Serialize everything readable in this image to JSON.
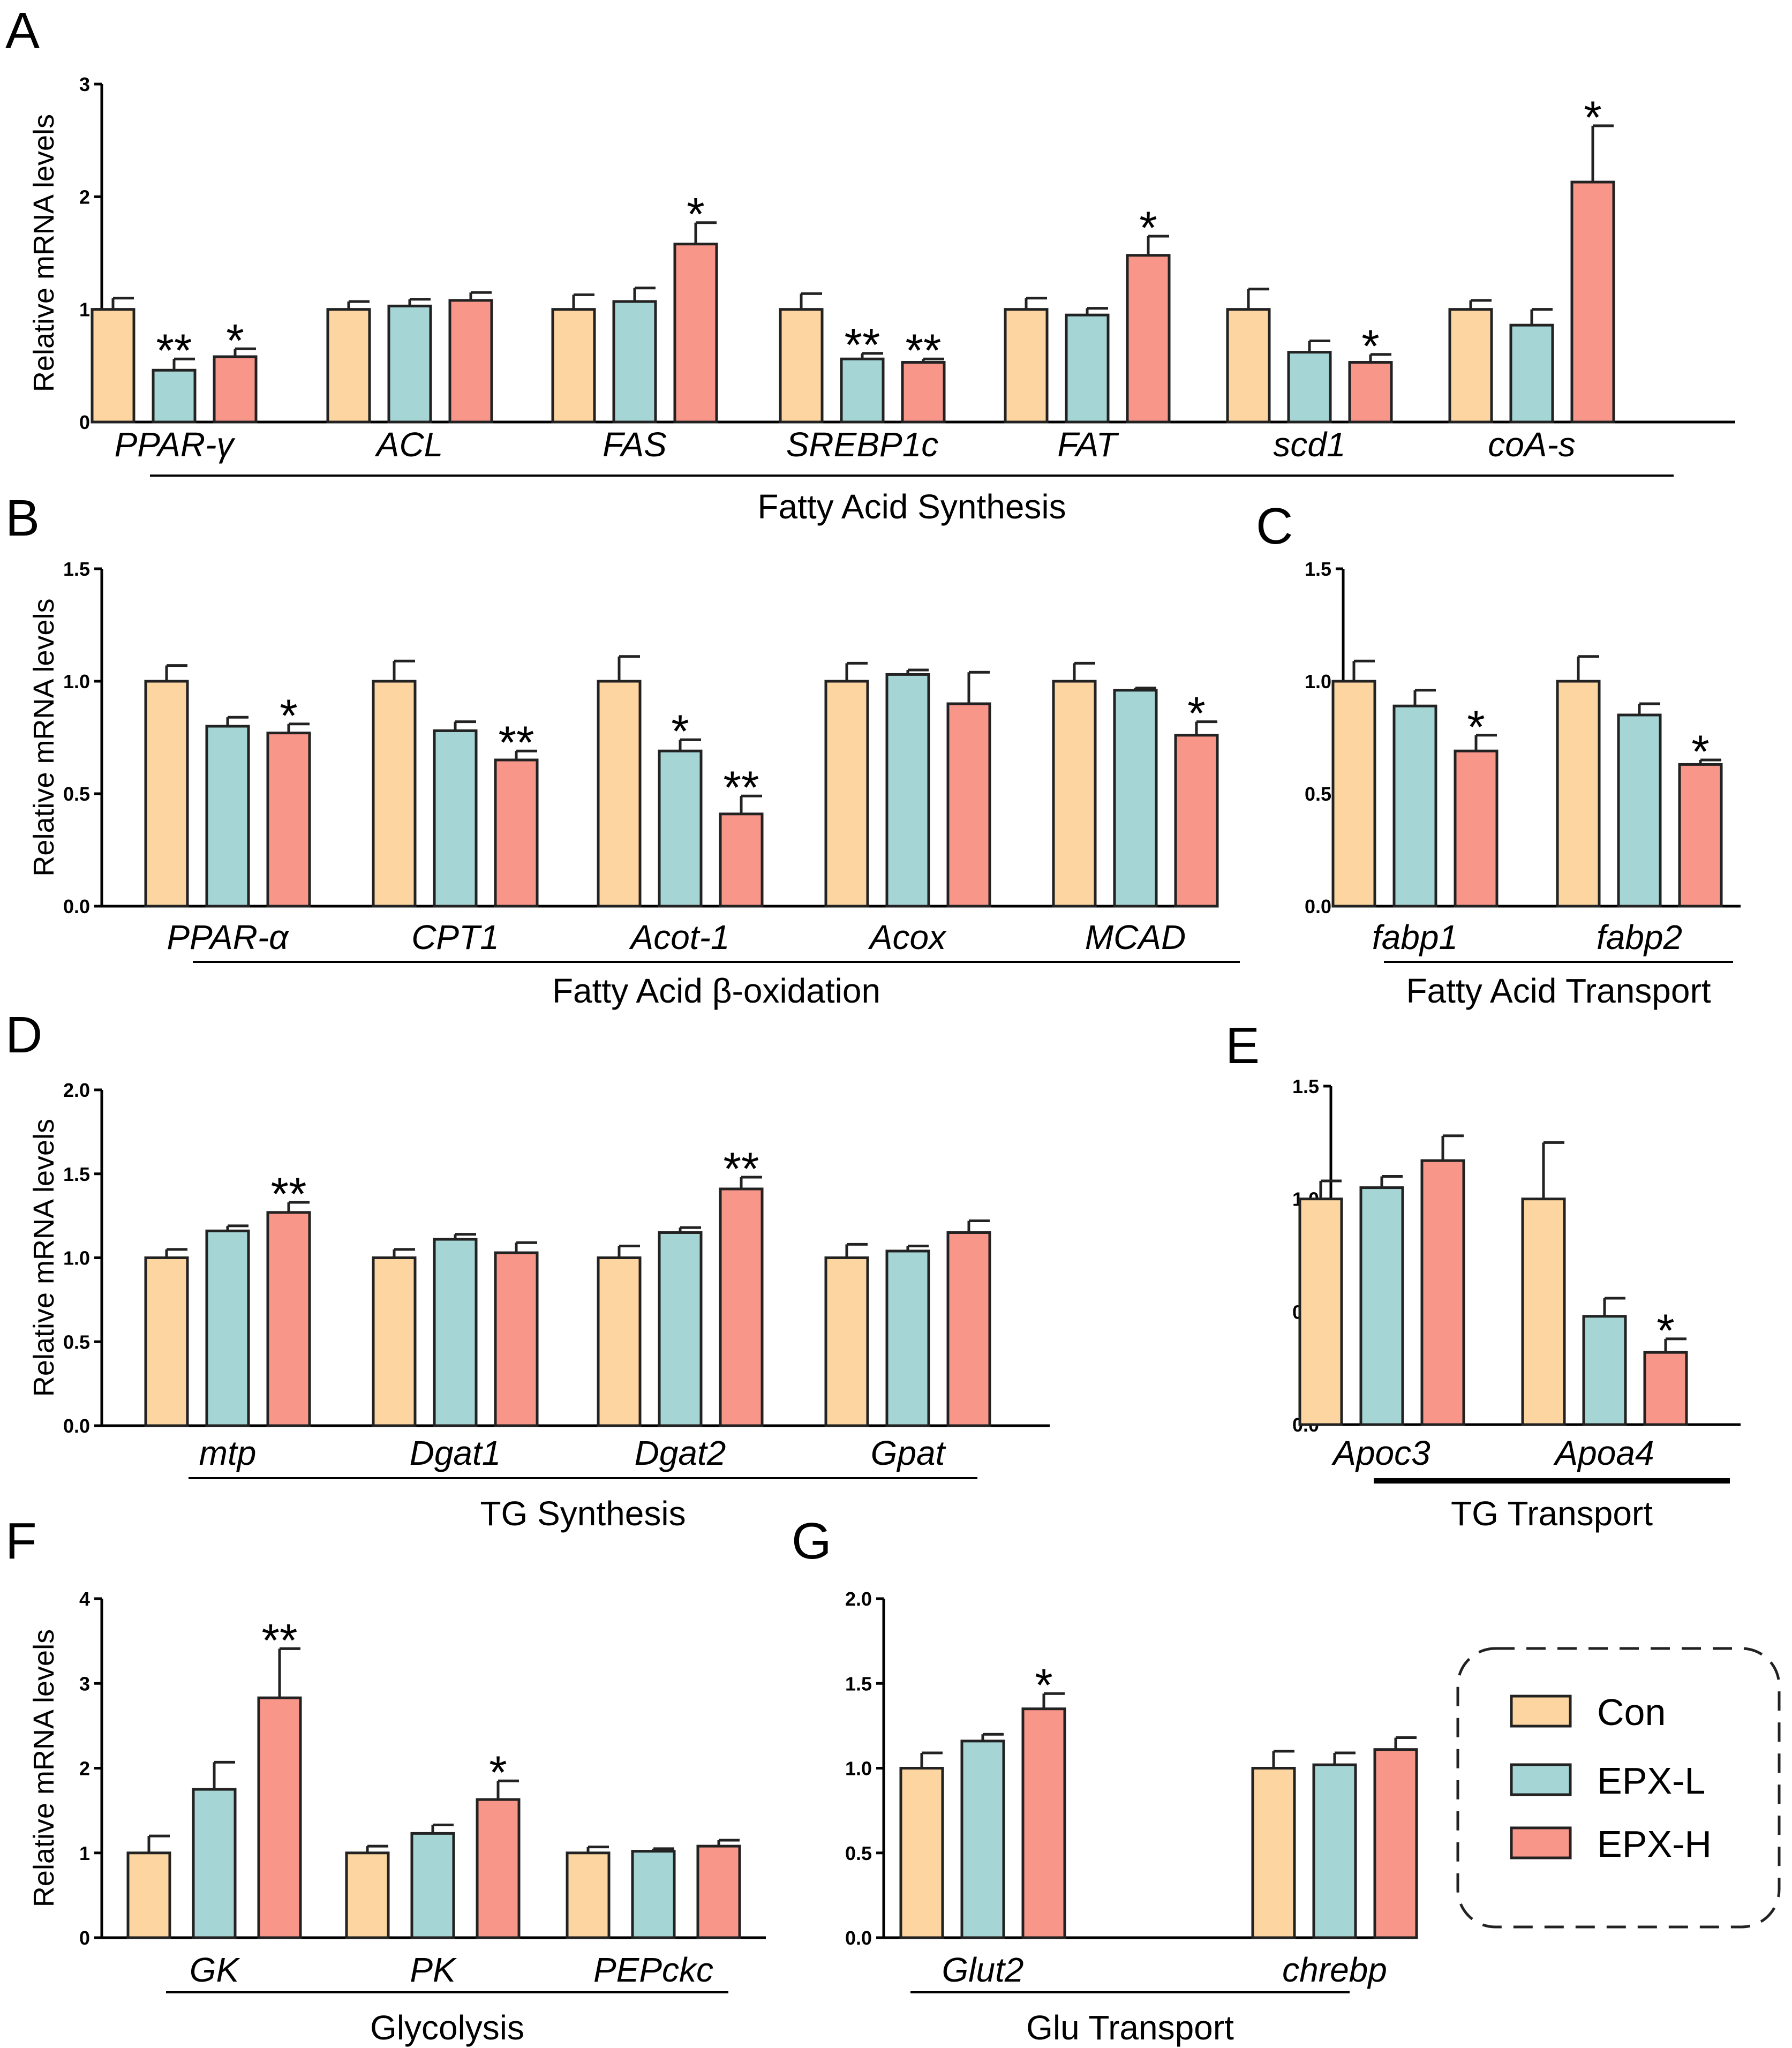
{
  "chart_data": [
    {
      "panel": "A",
      "type": "bar",
      "ylabel": "Relative mRNA levels",
      "ylim": [
        0,
        3
      ],
      "yticks": [
        "0",
        "1",
        "2",
        "3"
      ],
      "series_names": [
        "Con",
        "EPX-L",
        "EPX-H"
      ],
      "categories": [
        "PPAR-γ",
        "ACL",
        "FAS",
        "SREBP1c",
        "FAT",
        "scd1",
        "coA-s"
      ],
      "values": [
        [
          1.0,
          0.46,
          0.58
        ],
        [
          1.0,
          1.03,
          1.08
        ],
        [
          1.0,
          1.07,
          1.58
        ],
        [
          1.0,
          0.56,
          0.53
        ],
        [
          1.0,
          0.95,
          1.48
        ],
        [
          1.0,
          0.62,
          0.53
        ],
        [
          1.0,
          0.86,
          2.13
        ]
      ],
      "errors": [
        [
          0.1,
          0.1,
          0.07
        ],
        [
          0.07,
          0.06,
          0.07
        ],
        [
          0.13,
          0.12,
          0.19
        ],
        [
          0.14,
          0.05,
          0.03
        ],
        [
          0.1,
          0.06,
          0.17
        ],
        [
          0.18,
          0.1,
          0.07
        ],
        [
          0.08,
          0.14,
          0.5
        ]
      ],
      "significance": [
        [
          "",
          "**",
          "*"
        ],
        [
          "",
          "",
          ""
        ],
        [
          "",
          "",
          "*"
        ],
        [
          "",
          "**",
          "**"
        ],
        [
          "",
          "",
          "*"
        ],
        [
          "",
          "",
          "*"
        ],
        [
          "",
          "",
          "*"
        ]
      ],
      "group_labels": [
        {
          "text": "Fatty Acid Synthesis",
          "from": 0,
          "to": 6
        }
      ]
    },
    {
      "panel": "B",
      "type": "bar",
      "ylabel": "Relative mRNA levels",
      "ylim": [
        0,
        1.5
      ],
      "yticks": [
        "0.0",
        "0.5",
        "1.0",
        "1.5"
      ],
      "series_names": [
        "Con",
        "EPX-L",
        "EPX-H"
      ],
      "categories": [
        "PPAR-α",
        "CPT1",
        "Acot-1",
        "Acox",
        "MCAD"
      ],
      "values": [
        [
          1.0,
          0.8,
          0.77
        ],
        [
          1.0,
          0.78,
          0.65
        ],
        [
          1.0,
          0.69,
          0.41
        ],
        [
          1.0,
          1.03,
          0.9
        ],
        [
          1.0,
          0.96,
          0.76
        ]
      ],
      "errors": [
        [
          0.07,
          0.04,
          0.04
        ],
        [
          0.09,
          0.04,
          0.04
        ],
        [
          0.11,
          0.05,
          0.08
        ],
        [
          0.08,
          0.02,
          0.14
        ],
        [
          0.08,
          0.01,
          0.06
        ]
      ],
      "significance": [
        [
          "",
          "",
          "*"
        ],
        [
          "",
          "",
          "**"
        ],
        [
          "",
          "*",
          "**"
        ],
        [
          "",
          "",
          ""
        ],
        [
          "",
          "",
          "*"
        ]
      ],
      "group_labels": [
        {
          "text": "Fatty Acid β-oxidation",
          "from": 0,
          "to": 4
        }
      ]
    },
    {
      "panel": "C",
      "type": "bar",
      "ylabel": "",
      "ylim": [
        0,
        1.5
      ],
      "yticks": [
        "0.0",
        "0.5",
        "1.0",
        "1.5"
      ],
      "series_names": [
        "Con",
        "EPX-L",
        "EPX-H"
      ],
      "categories": [
        "fabp1",
        "fabp2"
      ],
      "values": [
        [
          1.0,
          0.89,
          0.69
        ],
        [
          1.0,
          0.85,
          0.63
        ]
      ],
      "errors": [
        [
          0.09,
          0.07,
          0.07
        ],
        [
          0.11,
          0.05,
          0.02
        ]
      ],
      "significance": [
        [
          "",
          "",
          "*"
        ],
        [
          "",
          "",
          "*"
        ]
      ],
      "group_labels": [
        {
          "text": "Fatty Acid Transport",
          "from": 0,
          "to": 1
        }
      ]
    },
    {
      "panel": "D",
      "type": "bar",
      "ylabel": "Relative mRNA levels",
      "ylim": [
        0,
        2
      ],
      "yticks": [
        "0.0",
        "0.5",
        "1.0",
        "1.5",
        "2.0"
      ],
      "series_names": [
        "Con",
        "EPX-L",
        "EPX-H"
      ],
      "categories": [
        "mtp",
        "Dgat1",
        "Dgat2",
        "Gpat"
      ],
      "values": [
        [
          1.0,
          1.16,
          1.27
        ],
        [
          1.0,
          1.11,
          1.03
        ],
        [
          1.0,
          1.15,
          1.41
        ],
        [
          1.0,
          1.04,
          1.15
        ]
      ],
      "errors": [
        [
          0.05,
          0.03,
          0.06
        ],
        [
          0.05,
          0.03,
          0.06
        ],
        [
          0.07,
          0.03,
          0.07
        ],
        [
          0.08,
          0.03,
          0.07
        ]
      ],
      "significance": [
        [
          "",
          "",
          "**"
        ],
        [
          "",
          "",
          ""
        ],
        [
          "",
          "",
          "**"
        ],
        [
          "",
          "",
          ""
        ]
      ],
      "group_labels": [
        {
          "text": "TG Synthesis",
          "from": 0,
          "to": 3
        }
      ]
    },
    {
      "panel": "E",
      "type": "bar",
      "ylabel": "",
      "ylim": [
        0,
        1.5
      ],
      "yticks": [
        "0.0",
        "0.5",
        "1.0",
        "1.5"
      ],
      "series_names": [
        "Con",
        "EPX-L",
        "EPX-H"
      ],
      "categories": [
        "Apoc3",
        "Apoa4"
      ],
      "values": [
        [
          1.0,
          1.05,
          1.17
        ],
        [
          1.0,
          0.48,
          0.32
        ]
      ],
      "errors": [
        [
          0.08,
          0.05,
          0.11
        ],
        [
          0.25,
          0.08,
          0.06
        ]
      ],
      "significance": [
        [
          "",
          "",
          ""
        ],
        [
          "",
          "",
          "*"
        ]
      ],
      "group_labels": [
        {
          "text": "TG Transport",
          "from": 0,
          "to": 1
        }
      ]
    },
    {
      "panel": "F",
      "type": "bar",
      "ylabel": "Relative mRNA levels",
      "ylim": [
        0,
        4
      ],
      "yticks": [
        "0",
        "1",
        "2",
        "3",
        "4"
      ],
      "series_names": [
        "Con",
        "EPX-L",
        "EPX-H"
      ],
      "categories": [
        "GK",
        "PK",
        "PEPckc"
      ],
      "values": [
        [
          1.0,
          1.75,
          2.83
        ],
        [
          1.0,
          1.23,
          1.63
        ],
        [
          1.0,
          1.02,
          1.08
        ]
      ],
      "errors": [
        [
          0.2,
          0.32,
          0.58
        ],
        [
          0.08,
          0.1,
          0.22
        ],
        [
          0.07,
          0.03,
          0.07
        ]
      ],
      "significance": [
        [
          "",
          "",
          "**"
        ],
        [
          "",
          "",
          "*"
        ],
        [
          "",
          "",
          ""
        ]
      ],
      "group_labels": [
        {
          "text": "Glycolysis",
          "from": 0,
          "to": 2
        }
      ]
    },
    {
      "panel": "G",
      "type": "bar",
      "ylabel": "",
      "ylim": [
        0,
        2
      ],
      "yticks": [
        "0.0",
        "0.5",
        "1.0",
        "1.5",
        "2.0"
      ],
      "series_names": [
        "Con",
        "EPX-L",
        "EPX-H"
      ],
      "categories": [
        "Glut2",
        "chrebp"
      ],
      "values": [
        [
          1.0,
          1.16,
          1.35
        ],
        [
          1.0,
          1.02,
          1.11
        ]
      ],
      "errors": [
        [
          0.09,
          0.04,
          0.09
        ],
        [
          0.1,
          0.07,
          0.07
        ]
      ],
      "significance": [
        [
          "",
          "",
          "*"
        ],
        [
          "",
          "",
          ""
        ]
      ],
      "group_labels": [
        {
          "text": "Glu Transport",
          "from": 0,
          "to": 1
        }
      ]
    }
  ],
  "legend": {
    "items": [
      {
        "label": "Con",
        "color": "#fcd5a0"
      },
      {
        "label": "EPX-L",
        "color": "#a6d5d6"
      },
      {
        "label": "EPX-H",
        "color": "#f9968a"
      }
    ]
  },
  "colors": {
    "con": "#fcd5a0",
    "epxl": "#a6d5d6",
    "epxh": "#f9968a"
  }
}
